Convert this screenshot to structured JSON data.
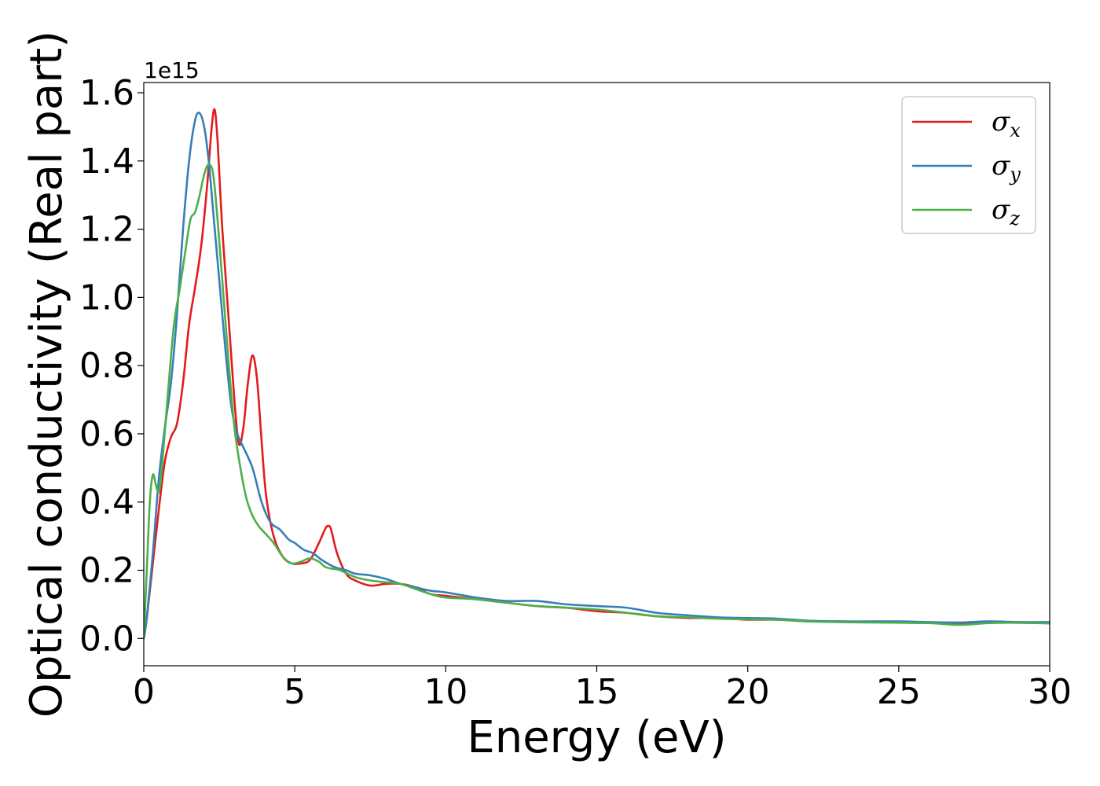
{
  "chart_data": {
    "type": "line",
    "xlabel": "Energy (eV)",
    "ylabel": "Optical conductivity (Real part)",
    "y_offset_label": "1e15",
    "y_scale_factor": 1000000000000000.0,
    "xlim": [
      0,
      30
    ],
    "ylim": [
      -0.08,
      1.63
    ],
    "grid": false,
    "legend_placement": "top-right",
    "x_ticks": [
      0,
      5,
      10,
      15,
      20,
      25,
      30
    ],
    "x_tick_labels": [
      "0",
      "5",
      "10",
      "15",
      "20",
      "25",
      "30"
    ],
    "y_ticks": [
      0.0,
      0.2,
      0.4,
      0.6,
      0.8,
      1.0,
      1.2,
      1.4,
      1.6
    ],
    "y_tick_labels": [
      "0.0",
      "0.2",
      "0.4",
      "0.6",
      "0.8",
      "1.0",
      "1.2",
      "1.4",
      "1.6"
    ],
    "series": [
      {
        "name": "σ",
        "subscript": "x",
        "color": "#e41a1c",
        "x": [
          0,
          0.1,
          0.3,
          0.5,
          0.7,
          0.9,
          1.1,
          1.3,
          1.5,
          1.7,
          1.9,
          2.1,
          2.25,
          2.35,
          2.45,
          2.6,
          2.8,
          3.0,
          3.15,
          3.3,
          3.45,
          3.6,
          3.75,
          3.9,
          4.05,
          4.3,
          4.6,
          4.9,
          5.2,
          5.5,
          5.8,
          6.0,
          6.1,
          6.2,
          6.4,
          6.7,
          7.0,
          7.5,
          8.0,
          8.5,
          9.0,
          9.5,
          10.0,
          11.0,
          12.0,
          13.0,
          14.0,
          15.0,
          16.0,
          17.0,
          18.0,
          19.0,
          20.0,
          21.0,
          22.0,
          23.0,
          24.0,
          25.0,
          26.0,
          27.0,
          28.0,
          29.0,
          30.0
        ],
        "y": [
          0.0,
          0.06,
          0.22,
          0.38,
          0.52,
          0.59,
          0.63,
          0.75,
          0.92,
          1.03,
          1.15,
          1.33,
          1.5,
          1.55,
          1.45,
          1.2,
          0.95,
          0.7,
          0.57,
          0.62,
          0.75,
          0.83,
          0.76,
          0.58,
          0.42,
          0.3,
          0.24,
          0.22,
          0.22,
          0.23,
          0.28,
          0.32,
          0.33,
          0.32,
          0.25,
          0.19,
          0.17,
          0.155,
          0.16,
          0.16,
          0.15,
          0.13,
          0.125,
          0.115,
          0.105,
          0.095,
          0.09,
          0.08,
          0.075,
          0.065,
          0.06,
          0.06,
          0.055,
          0.055,
          0.05,
          0.05,
          0.048,
          0.047,
          0.045,
          0.045,
          0.047,
          0.046,
          0.045
        ]
      },
      {
        "name": "σ",
        "subscript": "y",
        "color": "#377eb8",
        "x": [
          0,
          0.1,
          0.3,
          0.5,
          0.7,
          0.9,
          1.1,
          1.3,
          1.5,
          1.7,
          1.85,
          2.0,
          2.15,
          2.3,
          2.5,
          2.7,
          2.9,
          3.1,
          3.3,
          3.6,
          3.9,
          4.2,
          4.5,
          4.8,
          5.0,
          5.3,
          5.6,
          5.9,
          6.3,
          6.7,
          7.0,
          7.5,
          8.0,
          8.5,
          9.0,
          9.5,
          10.0,
          11.0,
          12.0,
          13.0,
          14.0,
          15.0,
          16.0,
          17.0,
          18.0,
          19.0,
          20.0,
          21.0,
          22.0,
          23.0,
          24.0,
          25.0,
          26.0,
          27.0,
          28.0,
          29.0,
          30.0
        ],
        "y": [
          0.0,
          0.06,
          0.25,
          0.47,
          0.62,
          0.75,
          0.95,
          1.2,
          1.4,
          1.52,
          1.54,
          1.5,
          1.4,
          1.25,
          1.05,
          0.85,
          0.68,
          0.6,
          0.56,
          0.5,
          0.4,
          0.34,
          0.32,
          0.29,
          0.28,
          0.26,
          0.25,
          0.23,
          0.21,
          0.2,
          0.19,
          0.185,
          0.175,
          0.16,
          0.15,
          0.14,
          0.135,
          0.12,
          0.11,
          0.11,
          0.1,
          0.095,
          0.09,
          0.075,
          0.068,
          0.062,
          0.06,
          0.058,
          0.052,
          0.05,
          0.05,
          0.05,
          0.048,
          0.047,
          0.05,
          0.048,
          0.048
        ]
      },
      {
        "name": "σ",
        "subscript": "z",
        "color": "#4daf4a",
        "x": [
          0,
          0.1,
          0.2,
          0.3,
          0.4,
          0.5,
          0.6,
          0.8,
          1.0,
          1.2,
          1.4,
          1.55,
          1.7,
          1.85,
          2.0,
          2.15,
          2.3,
          2.45,
          2.6,
          2.8,
          3.0,
          3.2,
          3.4,
          3.6,
          3.8,
          4.0,
          4.3,
          4.6,
          4.9,
          5.2,
          5.5,
          5.8,
          6.0,
          6.2,
          6.5,
          7.0,
          7.5,
          8.0,
          8.5,
          9.0,
          9.5,
          10.0,
          11.0,
          12.0,
          13.0,
          14.0,
          15.0,
          16.0,
          17.0,
          18.0,
          19.0,
          20.0,
          21.0,
          22.0,
          23.0,
          24.0,
          25.0,
          26.0,
          27.0,
          28.0,
          29.0,
          30.0
        ],
        "y": [
          0.0,
          0.2,
          0.4,
          0.48,
          0.45,
          0.43,
          0.5,
          0.72,
          0.92,
          1.03,
          1.15,
          1.23,
          1.25,
          1.3,
          1.36,
          1.39,
          1.36,
          1.22,
          1.05,
          0.82,
          0.62,
          0.5,
          0.41,
          0.36,
          0.33,
          0.31,
          0.28,
          0.24,
          0.22,
          0.225,
          0.235,
          0.225,
          0.21,
          0.205,
          0.2,
          0.18,
          0.17,
          0.165,
          0.16,
          0.145,
          0.13,
          0.12,
          0.115,
          0.105,
          0.095,
          0.09,
          0.085,
          0.075,
          0.065,
          0.062,
          0.058,
          0.056,
          0.055,
          0.05,
          0.048,
          0.047,
          0.046,
          0.045,
          0.04,
          0.045,
          0.046,
          0.044
        ]
      }
    ]
  }
}
